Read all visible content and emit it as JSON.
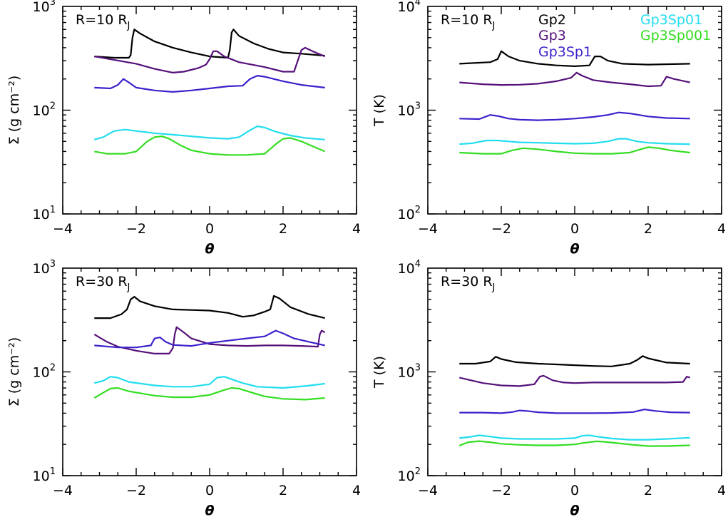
{
  "chart_data": [
    {
      "type": "line",
      "panel": "top-left",
      "annotation": {
        "main": "R=10 R",
        "sub": "J"
      },
      "xlabel": "θ",
      "ylabel": "Σ (g cm⁻²)",
      "xlim": [
        -4,
        4
      ],
      "ylim": [
        10,
        1000
      ],
      "yscale": "log",
      "xticks": [
        "−4",
        "−2",
        "0",
        "2",
        "4"
      ],
      "yticks": [
        {
          "base": "10",
          "exp": "1"
        },
        {
          "base": "10",
          "exp": "2"
        },
        {
          "base": "10",
          "exp": "3"
        }
      ],
      "series": [
        {
          "name": "Gp2",
          "color": "#000000",
          "x": [
            -3.14,
            -2.6,
            -2.2,
            -2.15,
            -2.1,
            -2.05,
            -1.9,
            -1.5,
            -1.0,
            -0.5,
            0.0,
            0.5,
            0.55,
            0.6,
            0.65,
            0.8,
            1.2,
            1.6,
            2.0,
            2.5,
            3.14
          ],
          "y": [
            330,
            320,
            320,
            340,
            500,
            600,
            550,
            460,
            400,
            360,
            330,
            320,
            380,
            560,
            600,
            520,
            440,
            390,
            360,
            350,
            335
          ]
        },
        {
          "name": "Gp3",
          "color": "#55107a",
          "x": [
            -3.14,
            -2.0,
            -1.5,
            -1.0,
            -0.7,
            -0.3,
            -0.1,
            0.0,
            0.1,
            0.2,
            0.4,
            0.8,
            1.5,
            2.0,
            2.3,
            2.4,
            2.5,
            2.6,
            2.8,
            3.14
          ],
          "y": [
            330,
            280,
            250,
            230,
            235,
            255,
            275,
            310,
            370,
            370,
            330,
            290,
            260,
            235,
            235,
            300,
            380,
            400,
            370,
            330
          ]
        },
        {
          "name": "Gp3Sp1",
          "color": "#3b22cc",
          "x": [
            -3.14,
            -2.7,
            -2.5,
            -2.35,
            -2.2,
            -2.0,
            -1.5,
            -1.0,
            -0.5,
            0.0,
            0.5,
            0.9,
            1.1,
            1.3,
            1.5,
            2.0,
            2.5,
            3.14
          ],
          "y": [
            165,
            162,
            175,
            200,
            185,
            165,
            155,
            150,
            155,
            162,
            170,
            172,
            200,
            215,
            210,
            190,
            175,
            165
          ]
        },
        {
          "name": "Gp3Sp01",
          "color": "#22ddee",
          "x": [
            -3.14,
            -2.9,
            -2.6,
            -2.3,
            -2.0,
            -1.5,
            -1.0,
            -0.5,
            0.0,
            0.5,
            0.8,
            1.1,
            1.3,
            1.5,
            1.8,
            2.2,
            2.6,
            3.14
          ],
          "y": [
            52,
            55,
            63,
            65,
            63,
            60,
            58,
            56,
            54,
            53,
            55,
            64,
            70,
            68,
            62,
            57,
            54,
            52
          ]
        },
        {
          "name": "Gp3Sp001",
          "color": "#33dd22",
          "x": [
            -3.14,
            -2.8,
            -2.3,
            -2.0,
            -1.7,
            -1.5,
            -1.3,
            -1.1,
            -0.8,
            -0.5,
            0.0,
            0.5,
            1.0,
            1.5,
            1.8,
            2.0,
            2.2,
            2.5,
            2.8,
            3.14
          ],
          "y": [
            40,
            38,
            38,
            40,
            50,
            55,
            56,
            53,
            46,
            41,
            38,
            37,
            37,
            38,
            47,
            53,
            54,
            50,
            45,
            40
          ]
        }
      ]
    },
    {
      "type": "line",
      "panel": "top-right",
      "annotation": {
        "main": "R=10 R",
        "sub": "J"
      },
      "xlabel": "θ",
      "ylabel": "T (K)",
      "xlim": [
        -4,
        4
      ],
      "ylim": [
        100,
        10000
      ],
      "yscale": "log",
      "legend": {
        "position": "top-right",
        "entries": [
          "Gp2",
          "Gp3",
          "Gp3Sp1",
          "Gp3Sp01",
          "Gp3Sp001"
        ]
      },
      "xticks": [
        "−4",
        "−2",
        "0",
        "2",
        "4"
      ],
      "yticks": [
        {
          "base": "10",
          "exp": "2"
        },
        {
          "base": "10",
          "exp": "3"
        },
        {
          "base": "10",
          "exp": "4"
        }
      ],
      "series": [
        {
          "name": "Gp2",
          "color": "#000000",
          "x": [
            -3.14,
            -2.3,
            -2.1,
            -2.0,
            -1.8,
            -1.5,
            -1.0,
            -0.5,
            0.0,
            0.4,
            0.55,
            0.7,
            0.9,
            1.3,
            2.0,
            3.14
          ],
          "y": [
            2800,
            2900,
            3100,
            3700,
            3300,
            3000,
            2800,
            2700,
            2650,
            2700,
            3300,
            3300,
            3000,
            2800,
            2750,
            2800
          ]
        },
        {
          "name": "Gp3",
          "color": "#55107a",
          "x": [
            -3.14,
            -2.5,
            -2.0,
            -1.5,
            -1.0,
            -0.5,
            -0.1,
            0.05,
            0.2,
            0.5,
            1.0,
            1.5,
            2.0,
            2.35,
            2.5,
            2.7,
            3.14
          ],
          "y": [
            1850,
            1780,
            1750,
            1760,
            1800,
            1900,
            2050,
            2300,
            2150,
            1950,
            1850,
            1780,
            1700,
            1720,
            2100,
            2000,
            1850
          ]
        },
        {
          "name": "Gp3Sp1",
          "color": "#3b22cc",
          "x": [
            -3.14,
            -2.6,
            -2.3,
            -2.1,
            -1.8,
            -1.5,
            -1.0,
            -0.5,
            0.0,
            0.5,
            0.9,
            1.2,
            1.5,
            2.0,
            2.5,
            3.14
          ],
          "y": [
            830,
            820,
            900,
            880,
            830,
            810,
            800,
            810,
            830,
            860,
            900,
            950,
            930,
            870,
            840,
            830
          ]
        },
        {
          "name": "Gp3Sp01",
          "color": "#22ddee",
          "x": [
            -3.14,
            -2.8,
            -2.4,
            -2.1,
            -1.8,
            -1.5,
            -1.0,
            -0.5,
            0.0,
            0.5,
            0.9,
            1.2,
            1.4,
            1.7,
            2.0,
            2.5,
            3.14
          ],
          "y": [
            470,
            480,
            510,
            510,
            500,
            490,
            485,
            480,
            475,
            480,
            500,
            530,
            530,
            500,
            485,
            475,
            470
          ]
        },
        {
          "name": "Gp3Sp001",
          "color": "#33dd22",
          "x": [
            -3.14,
            -2.5,
            -2.0,
            -1.7,
            -1.4,
            -1.0,
            -0.5,
            0.0,
            0.5,
            1.0,
            1.5,
            1.8,
            2.0,
            2.3,
            2.6,
            3.14
          ],
          "y": [
            390,
            380,
            380,
            410,
            430,
            420,
            400,
            385,
            380,
            380,
            390,
            420,
            440,
            430,
            410,
            390
          ]
        }
      ]
    },
    {
      "type": "line",
      "panel": "bottom-left",
      "annotation": {
        "main": "R=30 R",
        "sub": "J"
      },
      "xlabel": "θ",
      "ylabel": "Σ (g cm⁻²)",
      "xlim": [
        -4,
        4
      ],
      "ylim": [
        10,
        1000
      ],
      "yscale": "log",
      "xticks": [
        "−4",
        "−2",
        "0",
        "2",
        "4"
      ],
      "yticks": [
        {
          "base": "10",
          "exp": "1"
        },
        {
          "base": "10",
          "exp": "2"
        },
        {
          "base": "10",
          "exp": "3"
        }
      ],
      "series": [
        {
          "name": "Gp2",
          "color": "#000000",
          "x": [
            -3.14,
            -2.7,
            -2.4,
            -2.25,
            -2.15,
            -2.05,
            -1.9,
            -1.5,
            -1.0,
            -0.5,
            0.0,
            0.5,
            0.9,
            1.2,
            1.5,
            1.65,
            1.75,
            1.9,
            2.2,
            2.7,
            3.14
          ],
          "y": [
            330,
            330,
            360,
            400,
            500,
            530,
            480,
            430,
            400,
            395,
            390,
            370,
            340,
            350,
            380,
            400,
            540,
            510,
            420,
            360,
            330
          ]
        },
        {
          "name": "Gp3",
          "color": "#55107a",
          "x": [
            -3.14,
            -2.8,
            -2.5,
            -2.0,
            -1.5,
            -1.1,
            -1.0,
            -0.95,
            -0.9,
            -0.7,
            -0.5,
            0.0,
            0.5,
            1.0,
            1.5,
            2.0,
            2.5,
            2.95,
            3.0,
            3.05,
            3.14
          ],
          "y": [
            230,
            195,
            175,
            160,
            150,
            150,
            170,
            230,
            270,
            240,
            210,
            185,
            180,
            178,
            180,
            180,
            178,
            175,
            230,
            250,
            240
          ]
        },
        {
          "name": "Gp3Sp1",
          "color": "#3b22cc",
          "x": [
            -3.14,
            -2.5,
            -2.0,
            -1.6,
            -1.5,
            -1.35,
            -1.2,
            -1.0,
            -0.5,
            0.0,
            0.5,
            1.0,
            1.5,
            1.8,
            2.0,
            2.3,
            2.7,
            3.14
          ],
          "y": [
            180,
            172,
            172,
            180,
            210,
            215,
            195,
            182,
            178,
            190,
            200,
            210,
            220,
            250,
            235,
            210,
            195,
            180
          ]
        },
        {
          "name": "Gp3Sp01",
          "color": "#22ddee",
          "x": [
            -3.14,
            -2.9,
            -2.7,
            -2.5,
            -2.2,
            -1.5,
            -1.0,
            -0.5,
            0.0,
            0.2,
            0.4,
            0.6,
            0.9,
            1.3,
            2.0,
            2.6,
            3.14
          ],
          "y": [
            78,
            82,
            90,
            88,
            80,
            74,
            72,
            72,
            76,
            88,
            90,
            85,
            78,
            72,
            70,
            73,
            77
          ]
        },
        {
          "name": "Gp3Sp001",
          "color": "#33dd22",
          "x": [
            -3.14,
            -2.9,
            -2.7,
            -2.5,
            -2.2,
            -1.5,
            -1.0,
            -0.5,
            0.0,
            0.4,
            0.6,
            0.8,
            1.1,
            1.5,
            2.0,
            2.6,
            3.14
          ],
          "y": [
            56,
            63,
            69,
            70,
            65,
            59,
            57,
            57,
            60,
            67,
            70,
            69,
            64,
            58,
            55,
            54,
            56
          ]
        }
      ]
    },
    {
      "type": "line",
      "panel": "bottom-right",
      "annotation": {
        "main": "R=30 R",
        "sub": "J"
      },
      "xlabel": "θ",
      "ylabel": "T (K)",
      "xlim": [
        -4,
        4
      ],
      "ylim": [
        100,
        10000
      ],
      "yscale": "log",
      "xticks": [
        "−4",
        "−2",
        "0",
        "2",
        "4"
      ],
      "yticks": [
        {
          "base": "10",
          "exp": "2"
        },
        {
          "base": "10",
          "exp": "3"
        },
        {
          "base": "10",
          "exp": "4"
        }
      ],
      "series": [
        {
          "name": "Gp2",
          "color": "#000000",
          "x": [
            -3.14,
            -2.7,
            -2.3,
            -2.15,
            -2.0,
            -1.6,
            -1.0,
            -0.5,
            0.0,
            0.5,
            1.0,
            1.5,
            1.7,
            1.85,
            2.0,
            2.5,
            3.14
          ],
          "y": [
            1200,
            1200,
            1260,
            1400,
            1330,
            1240,
            1200,
            1180,
            1160,
            1140,
            1130,
            1200,
            1300,
            1420,
            1350,
            1230,
            1200
          ]
        },
        {
          "name": "Gp3",
          "color": "#55107a",
          "x": [
            -3.14,
            -2.5,
            -2.0,
            -1.5,
            -1.1,
            -0.95,
            -0.85,
            -0.6,
            -0.3,
            0.0,
            0.5,
            1.0,
            1.5,
            2.0,
            2.5,
            2.95,
            3.05,
            3.14
          ],
          "y": [
            880,
            780,
            740,
            730,
            760,
            900,
            920,
            830,
            790,
            780,
            790,
            790,
            790,
            790,
            790,
            800,
            900,
            880
          ]
        },
        {
          "name": "Gp3Sp1",
          "color": "#3b22cc",
          "x": [
            -3.14,
            -2.5,
            -2.0,
            -1.7,
            -1.5,
            -1.3,
            -1.0,
            -0.5,
            0.0,
            0.5,
            1.0,
            1.6,
            1.9,
            2.2,
            2.6,
            3.14
          ],
          "y": [
            405,
            405,
            400,
            410,
            425,
            420,
            408,
            400,
            400,
            400,
            402,
            410,
            435,
            420,
            408,
            405
          ]
        },
        {
          "name": "Gp3Sp01",
          "color": "#22ddee",
          "x": [
            -3.14,
            -2.9,
            -2.6,
            -2.3,
            -2.0,
            -1.5,
            -1.0,
            -0.5,
            0.0,
            0.2,
            0.4,
            0.6,
            1.0,
            1.5,
            2.0,
            2.5,
            3.14
          ],
          "y": [
            230,
            235,
            245,
            238,
            230,
            226,
            226,
            226,
            230,
            242,
            245,
            238,
            228,
            222,
            222,
            226,
            232
          ]
        },
        {
          "name": "Gp3Sp001",
          "color": "#33dd22",
          "x": [
            -3.14,
            -2.9,
            -2.6,
            -2.3,
            -2.0,
            -1.5,
            -1.0,
            -0.5,
            0.0,
            0.3,
            0.6,
            0.8,
            1.2,
            1.6,
            2.0,
            2.5,
            3.14
          ],
          "y": [
            195,
            210,
            215,
            210,
            203,
            198,
            196,
            196,
            200,
            208,
            214,
            212,
            205,
            198,
            193,
            193,
            196
          ]
        }
      ]
    }
  ]
}
